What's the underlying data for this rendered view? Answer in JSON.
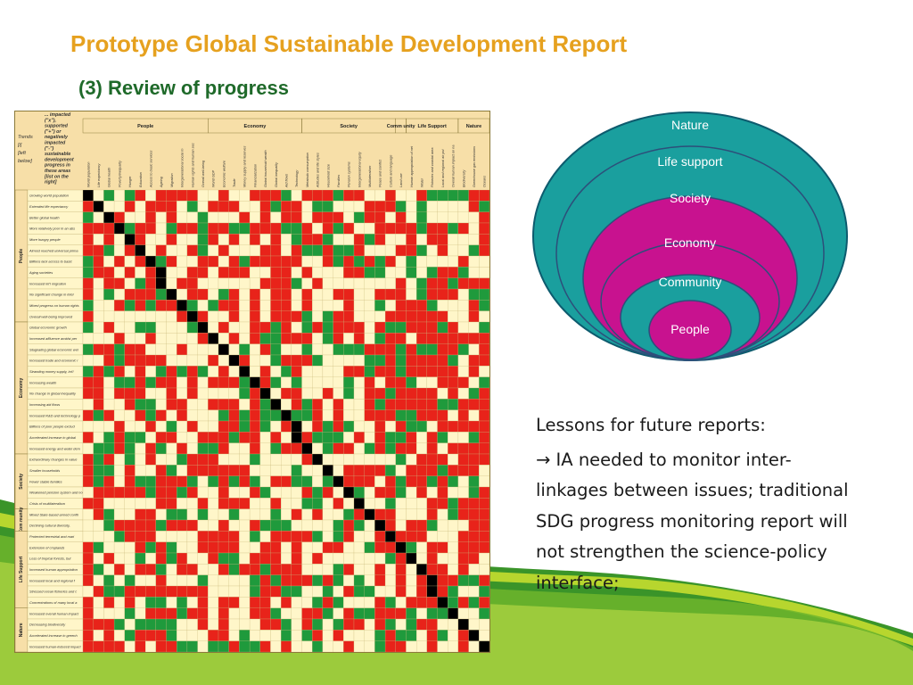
{
  "slide": {
    "title": "Prototype Global Sustainable Development Report",
    "subtitle": "(3) Review of progress"
  },
  "colors": {
    "title": "#e6a11f",
    "subtitle": "#1f6a2a",
    "matrix_red": "#e8231a",
    "matrix_green": "#1f9a3c",
    "matrix_cream": "#fff6c9",
    "matrix_header": "#f7dfa8",
    "circle_teal": "#1a9f9e",
    "circle_magenta": "#c8128f",
    "wave_green": "#2f8e1e",
    "wave_lime": "#b7d62e"
  },
  "circles": {
    "labels": [
      "Nature",
      "Life support",
      "Society",
      "Economy",
      "Community",
      "People"
    ]
  },
  "lessons": {
    "heading": "Lessons for future reports:",
    "body": "→ IA needed to monitor inter-linkages between issues; traditional SDG progress monitoring report will not strengthen the science-policy interface;"
  },
  "matrix": {
    "corner_text": [
      "Trends",
      "[i]",
      "[left",
      "below]"
    ],
    "header_note": "... impacted (\"x\"), supported (\"+\") or negatively impacted (\"-\") sustainable development progress in these areas [list on the right]",
    "column_groups": [
      "People",
      "Economy",
      "Society",
      "Comm unity",
      "Life Support",
      "Nature"
    ],
    "row_groups": [
      "People",
      "Economy",
      "Society",
      "Com munity",
      "Life Support",
      "Nature"
    ],
    "rows": [
      "Growing world population",
      "Extended life expectancy",
      "Better global health",
      "More relatively poor in an absolutely less poor world",
      "More hungry people",
      "Almost reached universal primary education",
      "Billions lack access to basic services",
      "Aging societies",
      "Increased int'l migration",
      "No significant change in intergenerational social mobility",
      "Mixed progress on human rights and human security",
      "Overall well-being improved",
      "Global economic growth",
      "Increased affluence amidst persistent poverty",
      "Stagnating global economic welfare",
      "Increased trade and economic integration",
      "Stranding money supply, int'l reserves and financialization",
      "Increasing wealth",
      "No change in global inequality between individuals",
      "Increasing aid flows",
      "Increased R&D and technology performance",
      "Billions of poor people excluded from global innovation process",
      "Accelerated increase in global metabolic rate",
      "Increased energy and water demand",
      "Extraordinary changes in values, attitudes, and life styles",
      "Smaller households",
      "Fewer stable families",
      "Weakened pension system and not consensus on intergenerational equity",
      "Crisis of multilateralism",
      "Mixed State-based armed conflicts",
      "Declining cultural diversity, traditions and indigenous languages",
      "Protected terrestrial and marine areas increased",
      "Extension of croplands",
      "Loss of tropical forests, but increased temperate and boreal forest area",
      "Increased human appropriation of net primary productivity",
      "Increased local and regional freshwater shortages and water stress",
      "Stressed ocean fisheries and coastal degradation",
      "Concentrations of many local and regional air pollutants gone decreased",
      "Increased overall human impact on nature",
      "Decreasing biodiversity",
      "Accelerated increase in greenhouse gas emissions",
      "Increased human-induced impacts on marine ecosystems"
    ],
    "columns": [
      "World population",
      "Life expectancy",
      "Global health",
      "Poverty/inequality",
      "Hunger",
      "Education",
      "Access to basic services",
      "Ageing",
      "Migration",
      "Intergenerational social mobility",
      "Human rights and human security",
      "Overall well-being",
      "World GDP",
      "Economic welfare",
      "Trade",
      "Money supply and reserves",
      "Financialization",
      "Global household wealth",
      "Global inequality",
      "Aid flows",
      "Technology",
      "Metabolic consumption",
      "Attitudes and life styles",
      "Household size",
      "Families",
      "Pension systems",
      "Intergenerational equity",
      "Multilateralism",
      "Peace and conflict",
      "Culture and language",
      "Land use",
      "Human appropriation of net primary productivity",
      "Water",
      "Fisheries and coastal areas",
      "Local and regional air pollution",
      "Overall human impact on nature",
      "Biodiversity",
      "Greenhouse gas emissions",
      "Oceans"
    ]
  }
}
